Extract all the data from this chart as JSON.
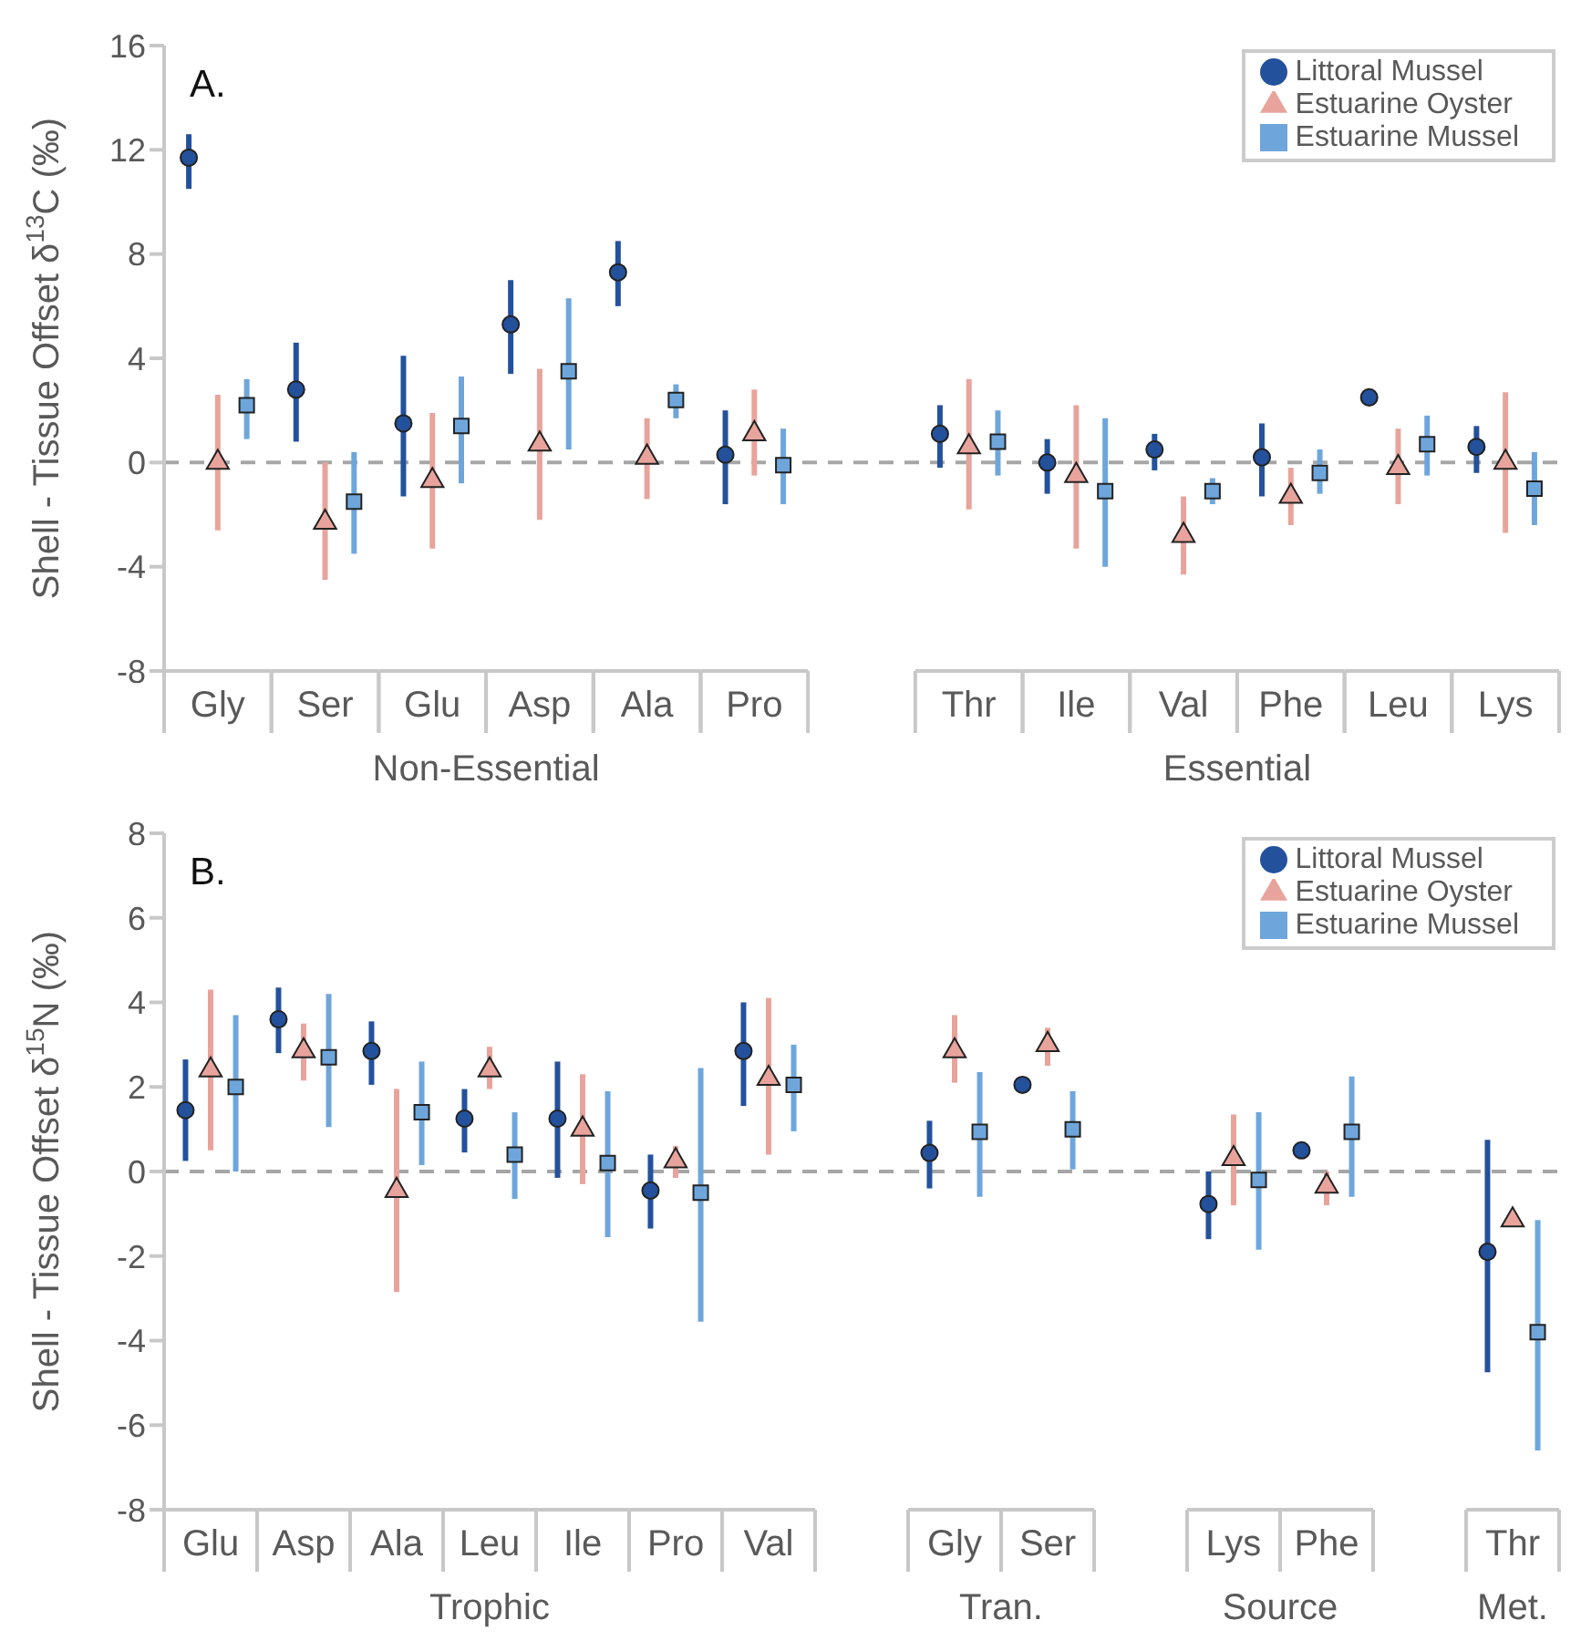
{
  "chart_data": [
    {
      "type": "scatter",
      "title": "A.",
      "ylabel": "Shell - Tissue Offset  δ$^{13}$C (‰)",
      "categories": [
        "Gly",
        "Ser",
        "Glu",
        "Asp",
        "Ala",
        "Pro",
        null,
        "Thr",
        "Ile",
        "Val",
        "Phe",
        "Leu",
        "Lys"
      ],
      "ylim": [
        -8,
        16
      ],
      "yticks": [
        -8,
        -4,
        0,
        4,
        8,
        12,
        16
      ],
      "legend": "top right",
      "ref_lines": [
        {
          "axis": "y",
          "value": 0,
          "color": "#a6a6a6",
          "line_style": "dashed"
        }
      ],
      "annotations": [
        "Non-Essential",
        "Essential"
      ],
      "series": [
        {
          "name": "Littoral Mussel",
          "color": "#24519c",
          "marker": "circle",
          "values": [
            11.7,
            2.8,
            1.5,
            5.3,
            7.3,
            0.3,
            null,
            1.1,
            0,
            0.5,
            0.2,
            2.5,
            0.6
          ],
          "errors": [
            [
              10.5,
              12.6
            ],
            [
              0.8,
              4.6
            ],
            [
              -1.3,
              4.1
            ],
            [
              3.4,
              7.0
            ],
            [
              6.0,
              8.5
            ],
            [
              -1.6,
              2.0
            ],
            null,
            [
              -0.2,
              2.2
            ],
            [
              -1.2,
              0.9
            ],
            [
              -0.3,
              1.1
            ],
            [
              -1.3,
              1.5
            ],
            null,
            [
              -0.4,
              1.4
            ]
          ]
        },
        {
          "name": "Estuarine Oyster",
          "color": "#e8a49c",
          "marker": "triangle",
          "values": [
            0,
            -2.3,
            -0.7,
            0.7,
            0.2,
            1.1,
            null,
            0.6,
            -0.5,
            -2.8,
            -1.3,
            -0.2,
            0
          ],
          "errors": [
            [
              -2.6,
              2.6
            ],
            [
              -4.5,
              0
            ],
            [
              -3.3,
              1.9
            ],
            [
              -2.2,
              3.6
            ],
            [
              -1.4,
              1.7
            ],
            [
              -0.5,
              2.8
            ],
            null,
            [
              -1.8,
              3.2
            ],
            [
              -3.3,
              2.2
            ],
            [
              -4.3,
              -1.3
            ],
            [
              -2.4,
              -0.2
            ],
            [
              -1.6,
              1.3
            ],
            [
              -2.7,
              2.7
            ]
          ]
        },
        {
          "name": "Estuarine Mussel",
          "color": "#6ea6dc",
          "marker": "square",
          "values": [
            2.2,
            -1.5,
            1.4,
            3.5,
            2.4,
            -0.1,
            null,
            0.8,
            -1.1,
            -1.1,
            -0.4,
            0.7,
            -1.0
          ],
          "errors": [
            [
              0.9,
              3.2
            ],
            [
              -3.5,
              0.4
            ],
            [
              -0.8,
              3.3
            ],
            [
              0.5,
              6.3
            ],
            [
              1.7,
              3.0
            ],
            [
              -1.6,
              1.3
            ],
            null,
            [
              -0.5,
              2.0
            ],
            [
              -4.0,
              1.7
            ],
            [
              -1.6,
              -0.6
            ],
            [
              -1.2,
              0.5
            ],
            [
              -0.5,
              1.8
            ],
            [
              -2.4,
              0.4
            ]
          ]
        }
      ]
    },
    {
      "type": "scatter",
      "title": "B.",
      "ylabel": "Shell - Tissue Offset  δ$^{15}$N (‰)",
      "categories": [
        "Glu",
        "Asp",
        "Ala",
        "Leu",
        "Ile",
        "Pro",
        "Val",
        null,
        "Gly",
        "Ser",
        null,
        "Lys",
        "Phe",
        null,
        "Thr"
      ],
      "ylim": [
        -8,
        8
      ],
      "yticks": [
        -8,
        -6,
        -4,
        -2,
        0,
        2,
        4,
        6,
        8
      ],
      "legend": "top right",
      "ref_lines": [
        {
          "axis": "y",
          "value": 0,
          "color": "#a6a6a6",
          "line_style": "dashed"
        }
      ],
      "annotations": [
        "Trophic",
        "Tran.",
        "Source",
        "Met."
      ],
      "series": [
        {
          "name": "Littoral Mussel",
          "color": "#24519c",
          "marker": "circle",
          "values": [
            1.45,
            3.6,
            2.85,
            1.25,
            1.25,
            -0.45,
            2.85,
            null,
            0.44,
            2.05,
            null,
            -0.77,
            0.5,
            null,
            -1.9
          ],
          "errors": [
            [
              0.25,
              2.65
            ],
            [
              2.8,
              4.35
            ],
            [
              2.05,
              3.55
            ],
            [
              0.45,
              1.95
            ],
            [
              -0.15,
              2.6
            ],
            [
              -1.35,
              0.4
            ],
            [
              1.55,
              4.0
            ],
            null,
            [
              -0.4,
              1.2
            ],
            null,
            null,
            [
              -1.6,
              0
            ],
            null,
            null,
            [
              -4.75,
              0.75
            ]
          ]
        },
        {
          "name": "Estuarine Oyster",
          "color": "#e8a49c",
          "marker": "triangle",
          "values": [
            2.4,
            2.85,
            -0.45,
            2.4,
            1.0,
            0.25,
            2.2,
            null,
            2.85,
            3.0,
            null,
            0.3,
            -0.35,
            null,
            -1.15
          ],
          "errors": [
            [
              0.5,
              4.3
            ],
            [
              2.15,
              3.5
            ],
            [
              -2.85,
              1.95
            ],
            [
              1.95,
              2.95
            ],
            [
              -0.3,
              2.3
            ],
            [
              -0.15,
              0.6
            ],
            [
              0.4,
              4.1
            ],
            null,
            [
              2.1,
              3.7
            ],
            [
              2.5,
              3.4
            ],
            null,
            [
              -0.8,
              1.35
            ],
            [
              -0.8,
              0
            ],
            null,
            null
          ]
        },
        {
          "name": "Estuarine Mussel",
          "color": "#6ea6dc",
          "marker": "square",
          "values": [
            2.0,
            2.7,
            1.4,
            0.4,
            0.2,
            -0.5,
            2.05,
            null,
            0.94,
            1.0,
            null,
            -0.2,
            0.94,
            null,
            -3.8
          ],
          "errors": [
            [
              0,
              3.7
            ],
            [
              1.05,
              4.2
            ],
            [
              0.15,
              2.6
            ],
            [
              -0.65,
              1.4
            ],
            [
              -1.55,
              1.9
            ],
            [
              -3.55,
              2.45
            ],
            [
              0.95,
              3.0
            ],
            null,
            [
              -0.6,
              2.35
            ],
            [
              0.05,
              1.9
            ],
            null,
            [
              -1.85,
              1.4
            ],
            [
              -0.6,
              2.25
            ],
            null,
            [
              -6.6,
              -1.15
            ]
          ]
        }
      ]
    }
  ]
}
